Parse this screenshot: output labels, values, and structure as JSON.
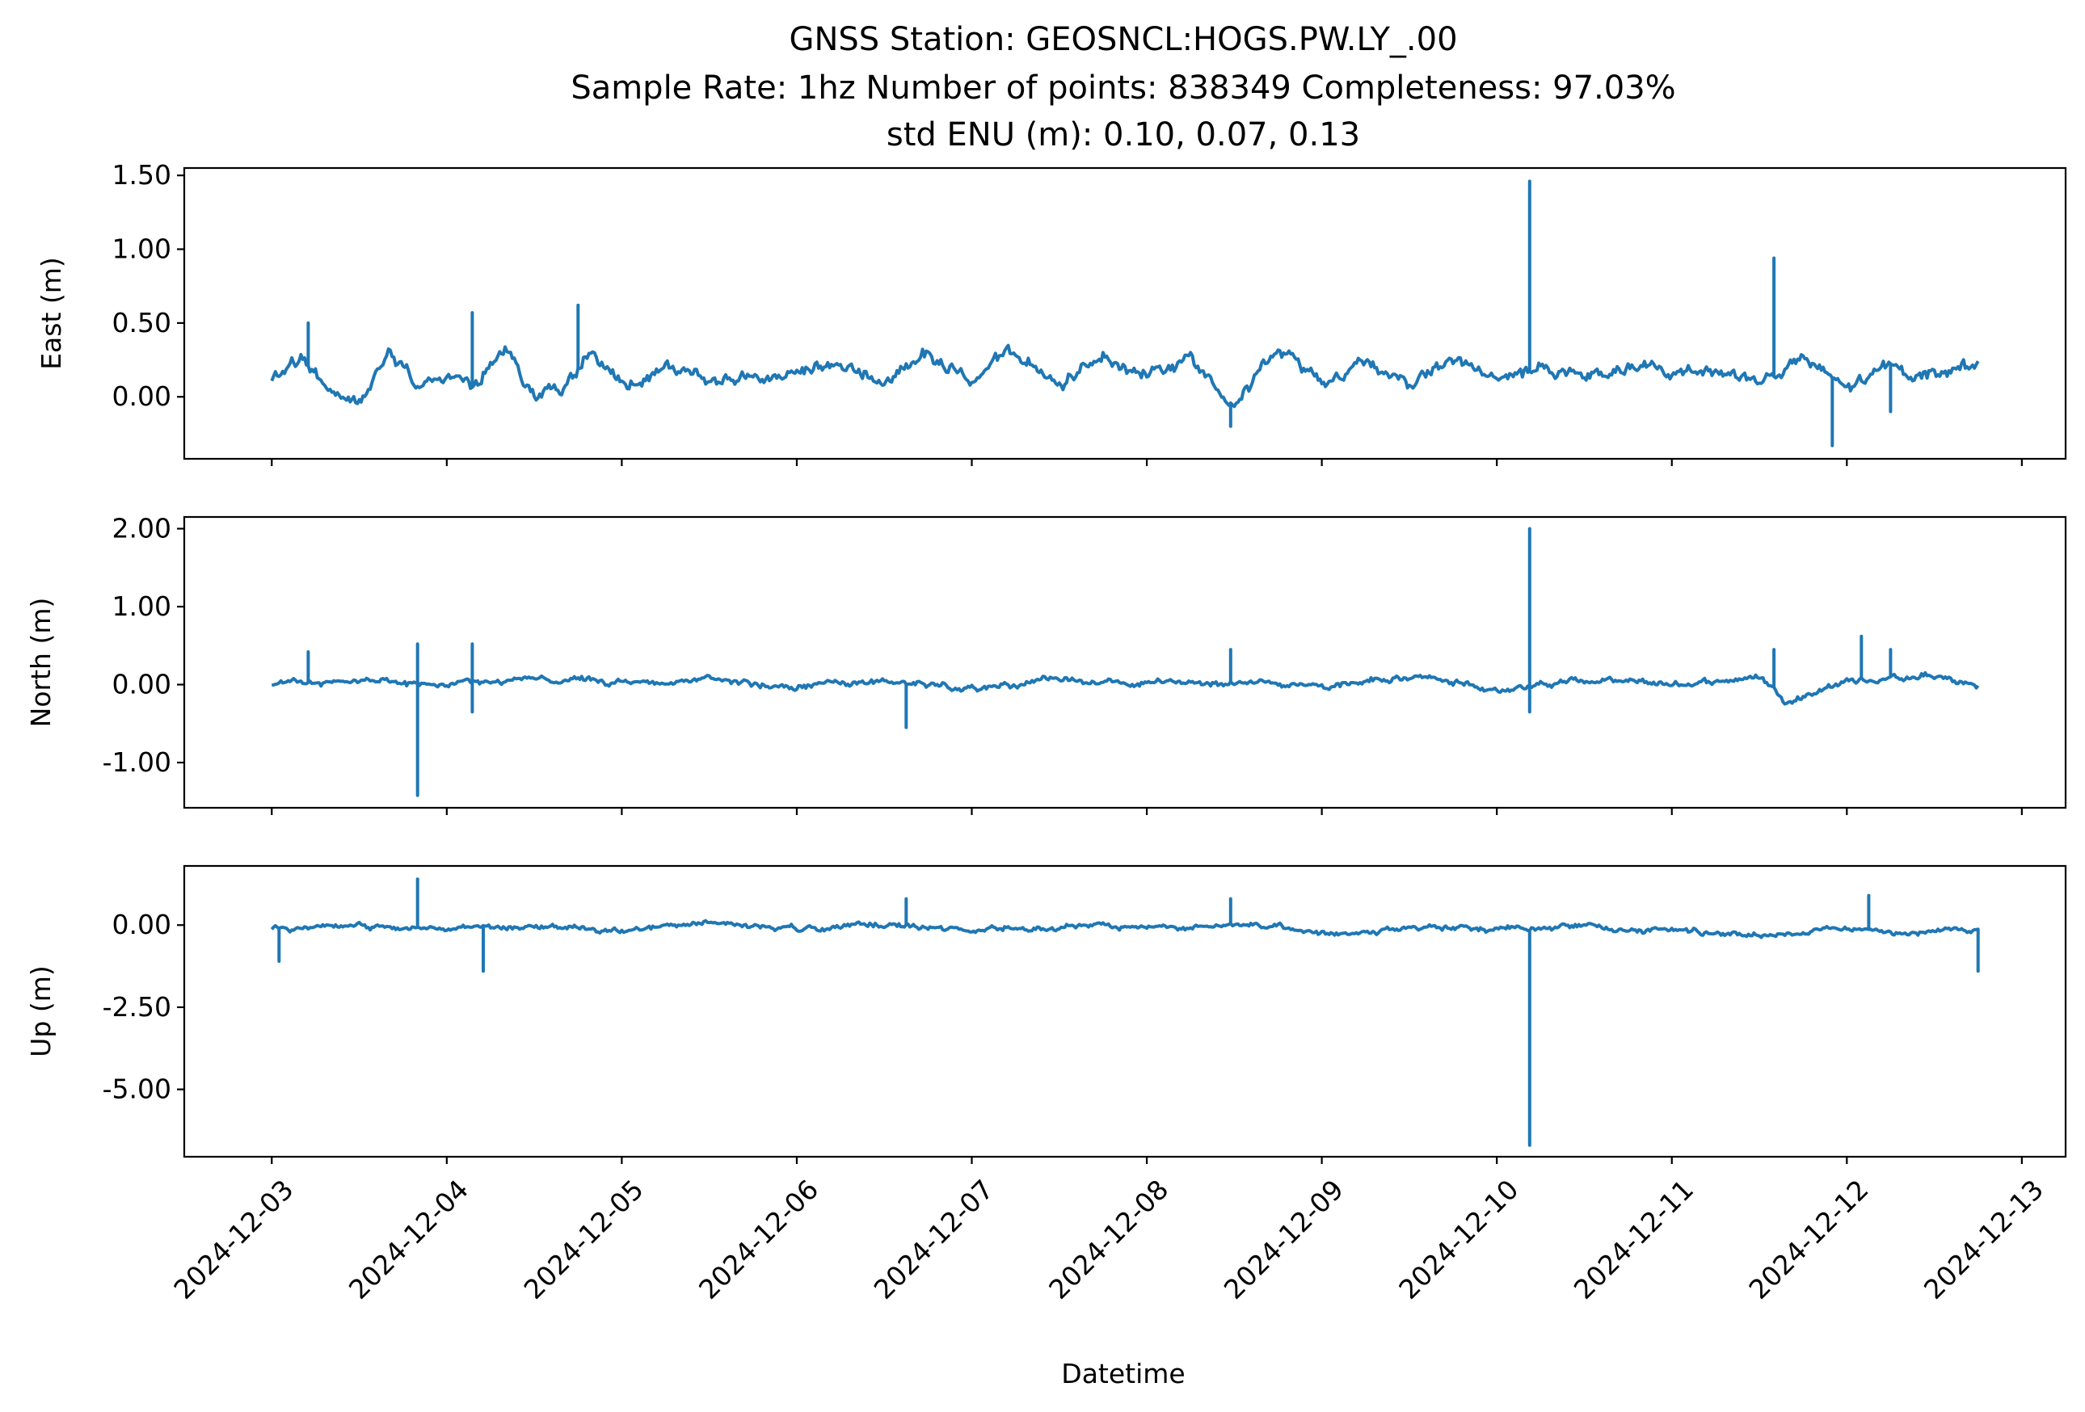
{
  "title_lines": [
    "GNSS Station: GEOSNCL:HOGS.PW.LY_.00",
    "Sample Rate: 1hz   Number of points: 838349    Completeness:  97.03%",
    "std ENU (m):  0.10, 0.07, 0.13"
  ],
  "chart_data": {
    "type": "line",
    "xlabel": "Datetime",
    "x_range": [
      "2024-12-02T12:00",
      "2024-12-13T06:00"
    ],
    "x_data_range": [
      "2024-12-03T00:00",
      "2024-12-12T18:00"
    ],
    "x_ticks": [
      "2024-12-03",
      "2024-12-04",
      "2024-12-05",
      "2024-12-06",
      "2024-12-07",
      "2024-12-08",
      "2024-12-09",
      "2024-12-10",
      "2024-12-11",
      "2024-12-12",
      "2024-12-13"
    ],
    "color": "#1f77b4",
    "grid": false,
    "legend": "none",
    "panels": [
      {
        "ylabel": "East (m)",
        "ylim": [
          -0.42,
          1.55
        ],
        "yticks": [
          1.5,
          1.0,
          0.5,
          0.0
        ],
        "ytick_labels": [
          "1.50",
          "1.00",
          "0.50",
          "0.00"
        ],
        "baseline_points": [
          [
            "2024-12-03T00:00",
            0.1
          ],
          [
            "2024-12-03T04:00",
            0.25
          ],
          [
            "2024-12-03T08:00",
            0.05
          ],
          [
            "2024-12-03T12:00",
            -0.05
          ],
          [
            "2024-12-03T16:00",
            0.35
          ],
          [
            "2024-12-03T20:00",
            0.1
          ],
          [
            "2024-12-04T00:00",
            0.15
          ],
          [
            "2024-12-04T04:00",
            0.05
          ],
          [
            "2024-12-04T08:00",
            0.3
          ],
          [
            "2024-12-04T12:00",
            0.05
          ],
          [
            "2024-12-04T16:00",
            0.05
          ],
          [
            "2024-12-04T20:00",
            0.3
          ],
          [
            "2024-12-05T00:00",
            0.05
          ],
          [
            "2024-12-05T06:00",
            0.2
          ],
          [
            "2024-12-05T12:00",
            0.1
          ],
          [
            "2024-12-05T18:00",
            0.15
          ],
          [
            "2024-12-06T00:00",
            0.1
          ],
          [
            "2024-12-06T06:00",
            0.2
          ],
          [
            "2024-12-06T12:00",
            0.1
          ],
          [
            "2024-12-06T18:00",
            0.3
          ],
          [
            "2024-12-07T00:00",
            0.1
          ],
          [
            "2024-12-07T06:00",
            0.3
          ],
          [
            "2024-12-07T12:00",
            0.05
          ],
          [
            "2024-12-07T18:00",
            0.3
          ],
          [
            "2024-12-08T00:00",
            0.15
          ],
          [
            "2024-12-08T06:00",
            0.25
          ],
          [
            "2024-12-08T12:00",
            0.0
          ],
          [
            "2024-12-08T18:00",
            0.3
          ],
          [
            "2024-12-09T00:00",
            0.1
          ],
          [
            "2024-12-09T06:00",
            0.25
          ],
          [
            "2024-12-09T12:00",
            0.1
          ],
          [
            "2024-12-09T18:00",
            0.25
          ],
          [
            "2024-12-10T00:00",
            0.1
          ],
          [
            "2024-12-10T06:00",
            0.2
          ],
          [
            "2024-12-10T12:00",
            0.1
          ],
          [
            "2024-12-10T18:00",
            0.2
          ],
          [
            "2024-12-11T00:00",
            0.15
          ],
          [
            "2024-12-11T06:00",
            0.2
          ],
          [
            "2024-12-11T12:00",
            0.1
          ],
          [
            "2024-12-11T18:00",
            0.25
          ],
          [
            "2024-12-12T00:00",
            0.05
          ],
          [
            "2024-12-12T06:00",
            0.2
          ],
          [
            "2024-12-12T12:00",
            0.15
          ],
          [
            "2024-12-12T18:00",
            0.25
          ]
        ],
        "spikes": [
          [
            "2024-12-03T05:00",
            0.5
          ],
          [
            "2024-12-04T03:30",
            0.57
          ],
          [
            "2024-12-04T18:00",
            0.62
          ],
          [
            "2024-12-08T11:30",
            -0.2
          ],
          [
            "2024-12-10T04:30",
            1.46
          ],
          [
            "2024-12-11T14:00",
            0.94
          ],
          [
            "2024-12-11T22:00",
            -0.33
          ],
          [
            "2024-12-12T06:00",
            -0.1
          ]
        ]
      },
      {
        "ylabel": "North (m)",
        "ylim": [
          -1.58,
          2.15
        ],
        "yticks": [
          2.0,
          1.0,
          0.0,
          -1.0
        ],
        "ytick_labels": [
          "2.00",
          "1.00",
          "0.00",
          "-1.00"
        ],
        "baseline_points": [
          [
            "2024-12-03T00:00",
            0.0
          ],
          [
            "2024-12-03T12:00",
            0.05
          ],
          [
            "2024-12-04T00:00",
            0.0
          ],
          [
            "2024-12-04T12:00",
            0.08
          ],
          [
            "2024-12-05T00:00",
            0.0
          ],
          [
            "2024-12-05T12:00",
            0.05
          ],
          [
            "2024-12-06T00:00",
            -0.02
          ],
          [
            "2024-12-06T12:00",
            0.05
          ],
          [
            "2024-12-07T00:00",
            -0.03
          ],
          [
            "2024-12-07T12:00",
            0.05
          ],
          [
            "2024-12-08T00:00",
            0.0
          ],
          [
            "2024-12-08T12:00",
            0.05
          ],
          [
            "2024-12-09T00:00",
            0.0
          ],
          [
            "2024-12-09T12:00",
            0.1
          ],
          [
            "2024-12-10T00:00",
            -0.05
          ],
          [
            "2024-12-10T12:00",
            0.05
          ],
          [
            "2024-12-11T00:00",
            0.0
          ],
          [
            "2024-12-11T12:00",
            0.1
          ],
          [
            "2024-12-11T16:00",
            -0.2
          ],
          [
            "2024-12-12T00:00",
            0.05
          ],
          [
            "2024-12-12T12:00",
            0.1
          ],
          [
            "2024-12-12T18:00",
            -0.03
          ]
        ],
        "spikes": [
          [
            "2024-12-03T05:00",
            0.42
          ],
          [
            "2024-12-03T20:00",
            0.52
          ],
          [
            "2024-12-03T20:00",
            -1.42
          ],
          [
            "2024-12-04T03:30",
            0.52
          ],
          [
            "2024-12-04T03:30",
            -0.35
          ],
          [
            "2024-12-06T15:00",
            -0.55
          ],
          [
            "2024-12-08T11:30",
            0.45
          ],
          [
            "2024-12-10T04:30",
            2.0
          ],
          [
            "2024-12-10T04:30",
            -0.35
          ],
          [
            "2024-12-11T14:00",
            0.45
          ],
          [
            "2024-12-12T02:00",
            0.62
          ],
          [
            "2024-12-12T06:00",
            0.45
          ]
        ]
      },
      {
        "ylabel": "Up (m)",
        "ylim": [
          -7.05,
          1.8
        ],
        "yticks": [
          0.0,
          -2.5,
          -5.0
        ],
        "ytick_labels": [
          "0.00",
          "-2.50",
          "-5.00"
        ],
        "baseline_points": [
          [
            "2024-12-03T00:00",
            -0.1
          ],
          [
            "2024-12-03T12:00",
            0.0
          ],
          [
            "2024-12-04T00:00",
            -0.15
          ],
          [
            "2024-12-04T12:00",
            -0.05
          ],
          [
            "2024-12-05T00:00",
            -0.2
          ],
          [
            "2024-12-05T12:00",
            0.05
          ],
          [
            "2024-12-06T00:00",
            -0.1
          ],
          [
            "2024-12-06T12:00",
            0.0
          ],
          [
            "2024-12-07T00:00",
            -0.15
          ],
          [
            "2024-12-07T12:00",
            -0.05
          ],
          [
            "2024-12-08T00:00",
            -0.1
          ],
          [
            "2024-12-08T12:00",
            0.0
          ],
          [
            "2024-12-09T00:00",
            -0.2
          ],
          [
            "2024-12-09T12:00",
            -0.1
          ],
          [
            "2024-12-10T00:00",
            -0.1
          ],
          [
            "2024-12-10T12:00",
            -0.05
          ],
          [
            "2024-12-11T00:00",
            -0.15
          ],
          [
            "2024-12-11T12:00",
            -0.3
          ],
          [
            "2024-12-12T00:00",
            -0.1
          ],
          [
            "2024-12-12T12:00",
            -0.2
          ],
          [
            "2024-12-12T18:00",
            -0.1
          ]
        ],
        "spikes": [
          [
            "2024-12-03T01:00",
            -1.1
          ],
          [
            "2024-12-03T20:00",
            1.4
          ],
          [
            "2024-12-04T05:00",
            -1.4
          ],
          [
            "2024-12-06T15:00",
            0.8
          ],
          [
            "2024-12-08T11:30",
            0.8
          ],
          [
            "2024-12-10T04:30",
            -6.7
          ],
          [
            "2024-12-12T03:00",
            0.9
          ],
          [
            "2024-12-12T18:00",
            -1.4
          ]
        ]
      }
    ]
  }
}
